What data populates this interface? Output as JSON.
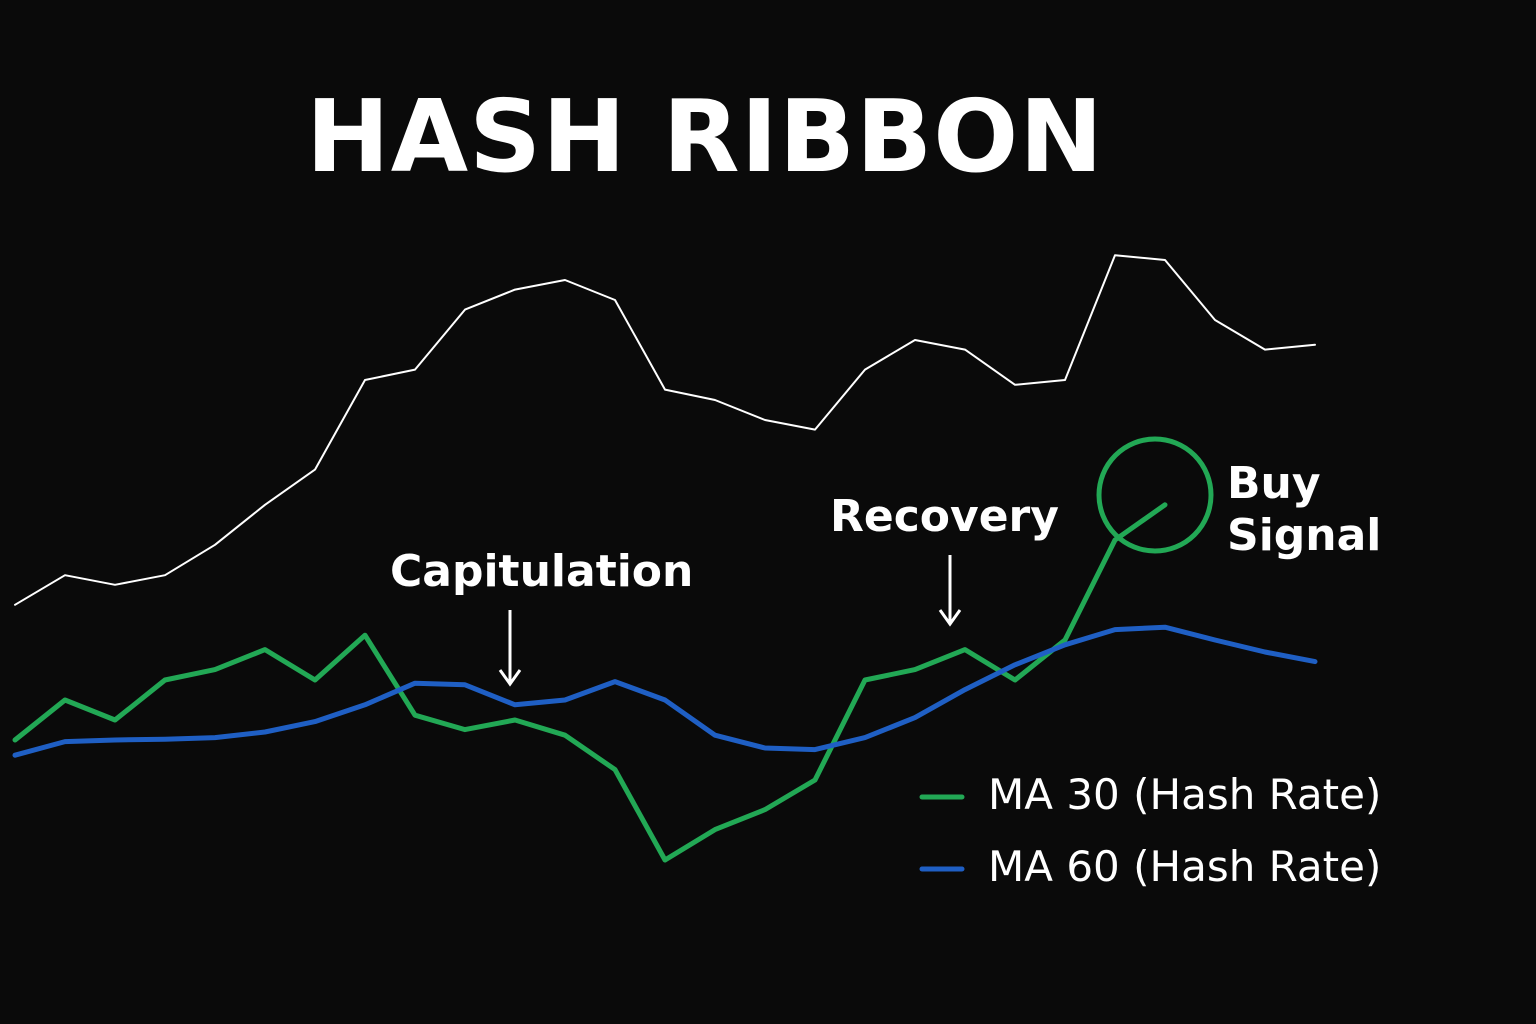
{
  "chart_data": {
    "type": "line",
    "title": "HASH RIBBON",
    "x": [
      0,
      1,
      2,
      3,
      4,
      5,
      6,
      7,
      8,
      9,
      10,
      11,
      12,
      13,
      14,
      15,
      16,
      17,
      18,
      19,
      20,
      21,
      22,
      23,
      24,
      25,
      26,
      27
    ],
    "xlim": [
      0,
      27
    ],
    "ylim": [
      0,
      100
    ],
    "grid": false,
    "series": [
      {
        "color": "#ffffff",
        "values": [
          49.4,
          53.1,
          51.9,
          53.1,
          56.9,
          61.9,
          66.3,
          77.5,
          78.8,
          86.3,
          88.8,
          90,
          87.5,
          76.3,
          75,
          72.5,
          71.3,
          78.8,
          82.5,
          81.3,
          76.9,
          77.5,
          93.1,
          92.5,
          85,
          81.3,
          81.9,
          null
        ]
      },
      {
        "name": "MA 30 (Hash Rate)",
        "color": "#22a855",
        "values": [
          32.5,
          37.5,
          35,
          40,
          41.3,
          43.8,
          40,
          45.6,
          35.6,
          33.8,
          35,
          33.1,
          28.8,
          17.5,
          21.3,
          23.8,
          27.5,
          40,
          41.3,
          43.8,
          40,
          45,
          57.5,
          61.9,
          null,
          null,
          null,
          null
        ]
      },
      {
        "name": "MA 60 (Hash Rate)",
        "color": "#1f5fc4",
        "values": [
          30.6,
          32.3,
          32.5,
          32.6,
          32.8,
          33.5,
          34.8,
          36.9,
          39.6,
          39.4,
          36.9,
          37.5,
          39.8,
          37.5,
          33.1,
          31.5,
          31.3,
          32.8,
          35.3,
          38.8,
          41.9,
          44.4,
          46.3,
          46.6,
          45,
          43.5,
          42.3,
          null
        ]
      }
    ],
    "annotations": [
      "Capitulation",
      "Recovery",
      "Buy Signal"
    ]
  }
}
